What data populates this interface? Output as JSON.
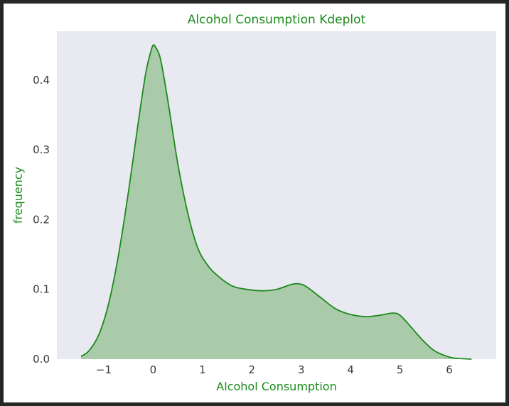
{
  "colors": {
    "accent": "#1a8a1a",
    "fill": "#a9cba9",
    "plot_bg": "#e9e9f1",
    "tick_text": "#3a3a3a"
  },
  "chart_data": {
    "type": "area",
    "title": "Alcohol Consumption Kdeplot",
    "xlabel": "Alcohol Consumption",
    "ylabel": "frequency",
    "xlim": [
      -1.95,
      6.95
    ],
    "ylim": [
      0,
      0.47
    ],
    "grid": false,
    "xticks": [
      -1,
      0,
      1,
      2,
      3,
      4,
      5,
      6
    ],
    "xtick_labels": [
      "−1",
      "0",
      "1",
      "2",
      "3",
      "4",
      "5",
      "6"
    ],
    "yticks": [
      0.0,
      0.1,
      0.2,
      0.3,
      0.4
    ],
    "ytick_labels": [
      "0.0",
      "0.1",
      "0.2",
      "0.3",
      "0.4"
    ],
    "series": [
      {
        "x": [
          -1.46,
          -1.3,
          -1.1,
          -0.9,
          -0.7,
          -0.5,
          -0.3,
          -0.15,
          -0.05,
          0.0,
          0.05,
          0.15,
          0.3,
          0.5,
          0.7,
          0.9,
          1.1,
          1.3,
          1.6,
          1.9,
          2.2,
          2.5,
          2.8,
          2.95,
          3.1,
          3.4,
          3.7,
          4.0,
          4.3,
          4.6,
          4.85,
          5.0,
          5.2,
          5.45,
          5.7,
          6.0,
          6.2,
          6.45
        ],
        "y": [
          0.004,
          0.012,
          0.035,
          0.08,
          0.15,
          0.24,
          0.34,
          0.41,
          0.44,
          0.45,
          0.447,
          0.43,
          0.37,
          0.28,
          0.21,
          0.16,
          0.135,
          0.12,
          0.105,
          0.1,
          0.098,
          0.1,
          0.107,
          0.108,
          0.104,
          0.088,
          0.072,
          0.064,
          0.061,
          0.063,
          0.066,
          0.063,
          0.048,
          0.028,
          0.012,
          0.003,
          0.001,
          0.0
        ]
      }
    ]
  }
}
